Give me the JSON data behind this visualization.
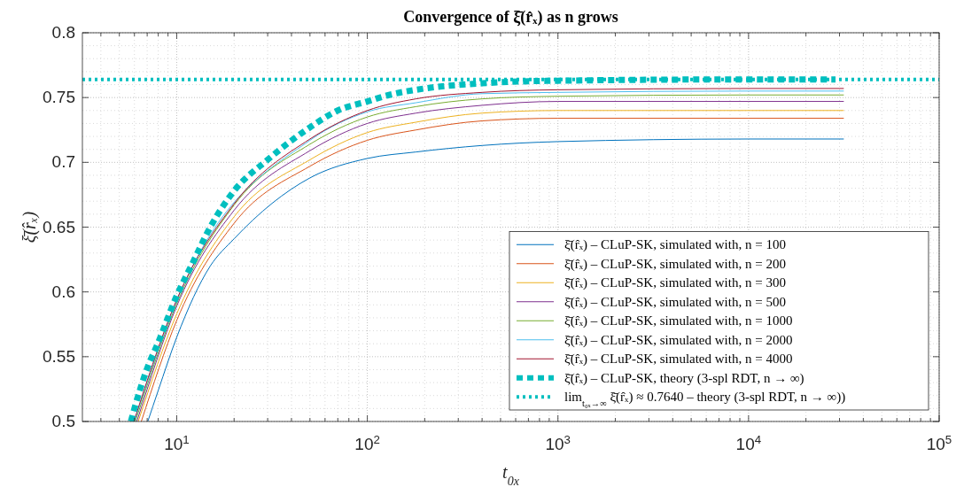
{
  "chart_data": {
    "type": "line",
    "title": "Convergence of ξ̄(r̂ₓ) as n grows",
    "xlabel": "t$_{0x}$",
    "ylabel": "ξ̄(r̂ₓ)",
    "log": "x",
    "grid": true,
    "legend": "bottom right",
    "line_style": "solid",
    "marker": "none",
    "xlim": [
      3.2,
      100000
    ],
    "xticks": [
      {
        "value": 10,
        "label": "10$^{1}$"
      },
      {
        "value": 100,
        "label": "10$^{2}$"
      },
      {
        "value": 1000,
        "label": "10$^{3}$"
      },
      {
        "value": 10000,
        "label": "10$^{4}$"
      },
      {
        "value": 100000,
        "label": "10$^{5}$"
      }
    ],
    "ylim": [
      0.5,
      0.8
    ],
    "yticks": [
      0.5,
      0.55,
      0.6,
      0.65,
      0.7,
      0.75,
      0.8
    ],
    "series": [
      {
        "name": "ξ̄(r̂ₓ) – CLuP-SK, simulated with, n = 100",
        "color": "#0072bd",
        "x": [
          7.05,
          8,
          10,
          15,
          20,
          50,
          100,
          180,
          400,
          1000,
          10000,
          31600
        ],
        "values": [
          0.5,
          0.524,
          0.565,
          0.62,
          0.641,
          0.688,
          0.703,
          0.708,
          0.713,
          0.716,
          0.718,
          0.718
        ]
      },
      {
        "name": "ξ̄(r̂ₓ) – CLuP-SK, simulated with, n = 200",
        "color": "#d95319",
        "x": [
          6.52,
          10,
          20,
          50,
          100,
          180,
          400,
          1000,
          10000,
          31600
        ],
        "values": [
          0.5,
          0.578,
          0.653,
          0.697,
          0.717,
          0.725,
          0.732,
          0.734,
          0.734,
          0.734
        ]
      },
      {
        "name": "ξ̄(r̂ₓ) – CLuP-SK, simulated with, n = 300",
        "color": "#edb120",
        "x": [
          6.28,
          10,
          20,
          50,
          100,
          180,
          400,
          1000,
          10000,
          31600
        ],
        "values": [
          0.5,
          0.583,
          0.658,
          0.702,
          0.723,
          0.731,
          0.738,
          0.74,
          0.74,
          0.74
        ]
      },
      {
        "name": "ξ̄(r̂ₓ) – CLuP-SK, simulated with, n = 500",
        "color": "#7e2f8e",
        "x": [
          6.18,
          10,
          20,
          50,
          100,
          180,
          400,
          1000,
          10000,
          31600
        ],
        "values": [
          0.5,
          0.589,
          0.663,
          0.709,
          0.73,
          0.738,
          0.744,
          0.747,
          0.747,
          0.747
        ]
      },
      {
        "name": "ξ̄(r̂ₓ) – CLuP-SK, simulated with, n = 1000",
        "color": "#77ac30",
        "x": [
          6.07,
          10,
          20,
          50,
          100,
          180,
          400,
          1000,
          10000,
          31600
        ],
        "values": [
          0.5,
          0.591,
          0.667,
          0.714,
          0.735,
          0.743,
          0.749,
          0.751,
          0.752,
          0.752
        ]
      },
      {
        "name": "ξ̄(r̂ₓ) – CLuP-SK, simulated with, n = 2000",
        "color": "#4dbeee",
        "x": [
          6.0,
          10,
          50,
          100,
          180,
          400,
          1000,
          10000,
          31600
        ],
        "values": [
          0.5,
          0.593,
          0.717,
          0.739,
          0.746,
          0.753,
          0.754,
          0.755,
          0.755
        ]
      },
      {
        "name": "ξ̄(r̂ₓ) – CLuP-SK, simulated with, n = 4000",
        "color": "#a2142f",
        "x": [
          5.96,
          10,
          20,
          50,
          100,
          180,
          400,
          1000,
          10000,
          31600
        ],
        "values": [
          0.5,
          0.594,
          0.668,
          0.718,
          0.74,
          0.749,
          0.754,
          0.756,
          0.757,
          0.757
        ]
      },
      {
        "name": "ξ̄(r̂ₓ) – CLuP-SK, theory (3-spl RDT, n → ∞)",
        "color": "#00bfbf",
        "line_style": "dashed",
        "x": [
          5.75,
          6,
          7,
          8,
          10,
          12,
          15,
          20,
          30,
          50,
          70,
          100,
          130,
          180,
          400,
          1000,
          10000,
          28600
        ],
        "values": [
          0.5,
          0.51,
          0.541,
          0.561,
          0.597,
          0.621,
          0.65,
          0.678,
          0.702,
          0.727,
          0.74,
          0.747,
          0.752,
          0.756,
          0.761,
          0.763,
          0.764,
          0.764
        ]
      }
    ],
    "ref_lines": [
      {
        "axis": "y",
        "value": 0.764,
        "label": "lim$_{t₀ₓ→∞}$ ξ̄(r̂ₓ) ≈ 0.7640 – theory (3-spl RDT, n → ∞))",
        "color": "#00bfbf",
        "line_style": "dotted"
      }
    ]
  }
}
